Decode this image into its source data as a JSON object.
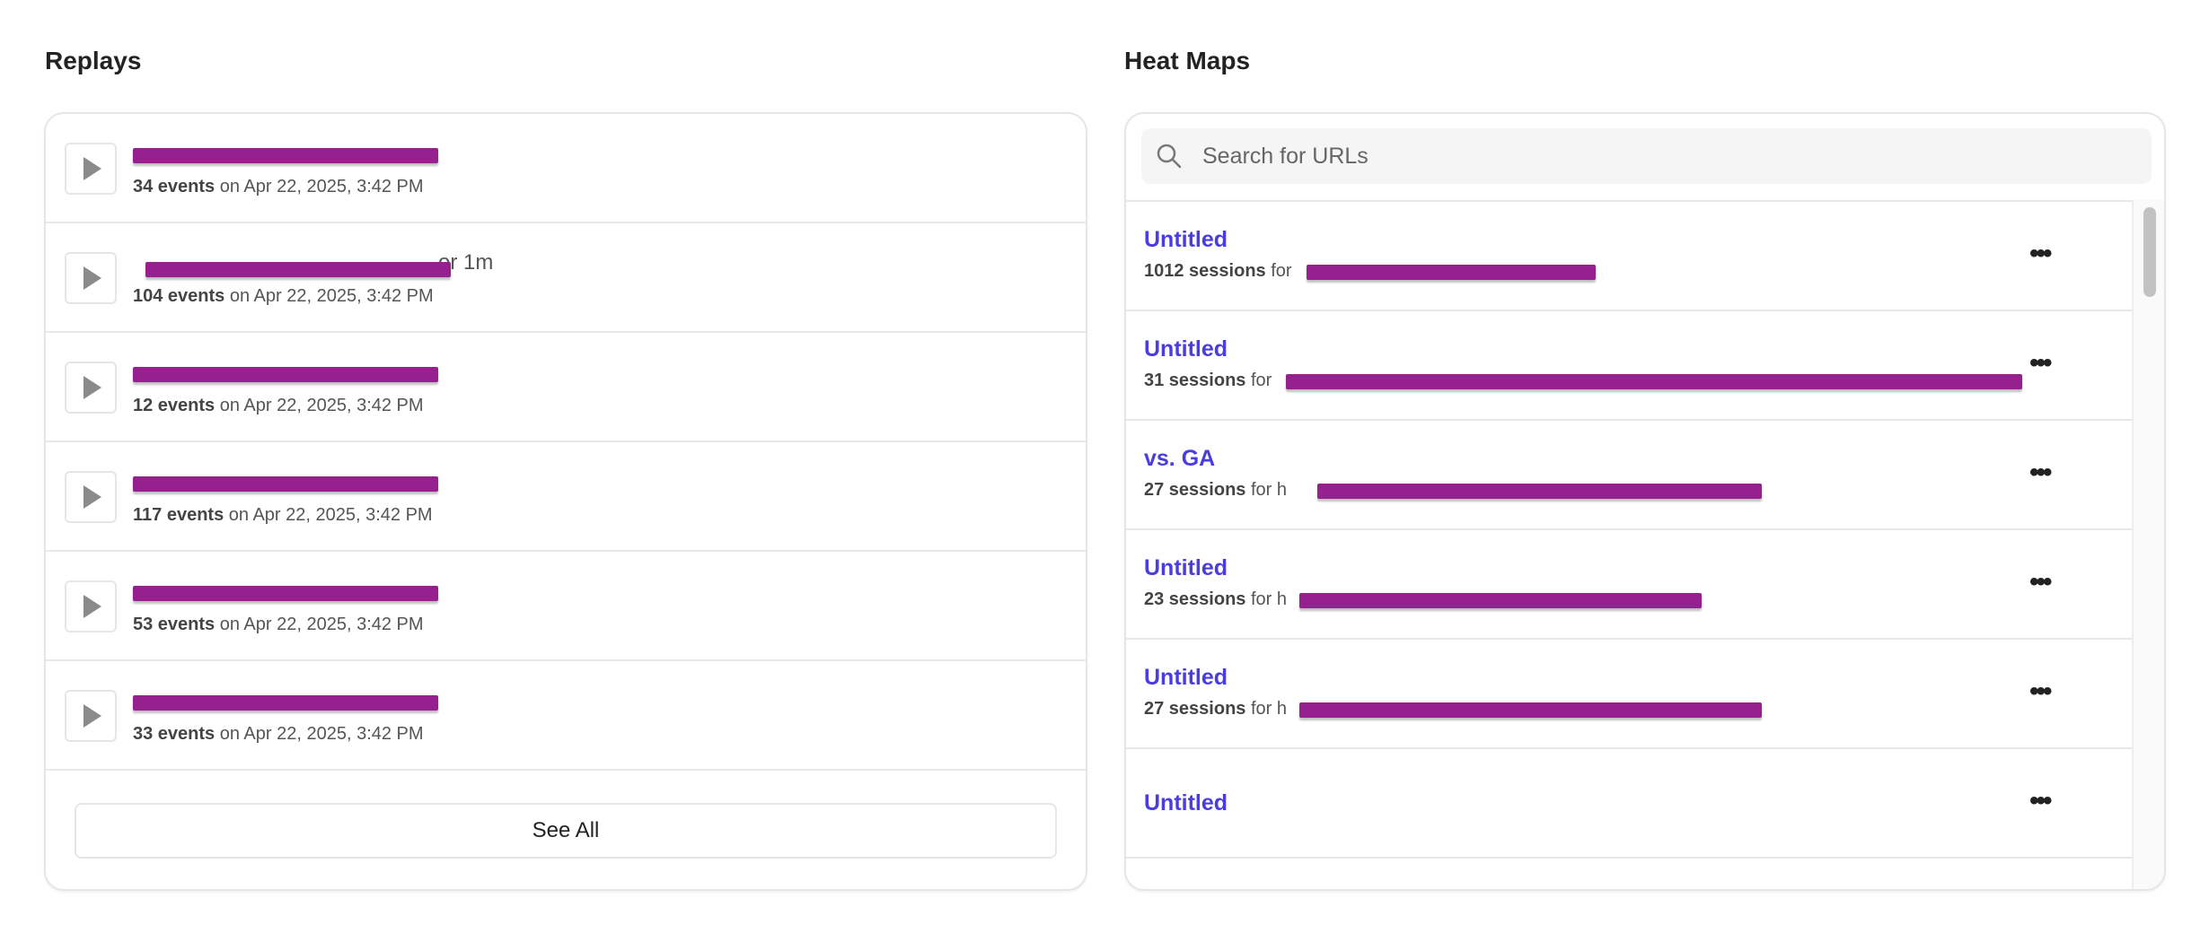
{
  "replays": {
    "title": "Replays",
    "rows": [
      {
        "name_tail": "",
        "events": "34 events",
        "date": "on Apr 22, 2025, 3:42 PM"
      },
      {
        "name_tail": "or 1m",
        "events": "104 events",
        "date": "on Apr 22, 2025, 3:42 PM"
      },
      {
        "name_tail": "",
        "events": "12 events",
        "date": "on Apr 22, 2025, 3:42 PM"
      },
      {
        "name_tail": "",
        "events": "117 events",
        "date": "on Apr 22, 2025, 3:42 PM"
      },
      {
        "name_tail": "",
        "events": "53 events",
        "date": "on Apr 22, 2025, 3:42 PM"
      },
      {
        "name_tail": "",
        "events": "33 events",
        "date": "on Apr 22, 2025, 3:42 PM"
      }
    ],
    "see_all_label": "See All"
  },
  "heatmaps": {
    "title": "Heat Maps",
    "search_placeholder": "Search for URLs",
    "rows": [
      {
        "title": "Untitled",
        "sessions": "1012 sessions",
        "for": "for"
      },
      {
        "title": "Untitled",
        "sessions": "31 sessions",
        "for": "for"
      },
      {
        "title": "vs. GA",
        "sessions": "27 sessions",
        "for": "for h"
      },
      {
        "title": "Untitled",
        "sessions": "23 sessions",
        "for": "for h"
      },
      {
        "title": "Untitled",
        "sessions": "27 sessions",
        "for": "for h"
      },
      {
        "title": "Untitled"
      }
    ],
    "more_label": "•••"
  },
  "colors": {
    "link": "#4a3de0",
    "redaction": "#95208e"
  }
}
